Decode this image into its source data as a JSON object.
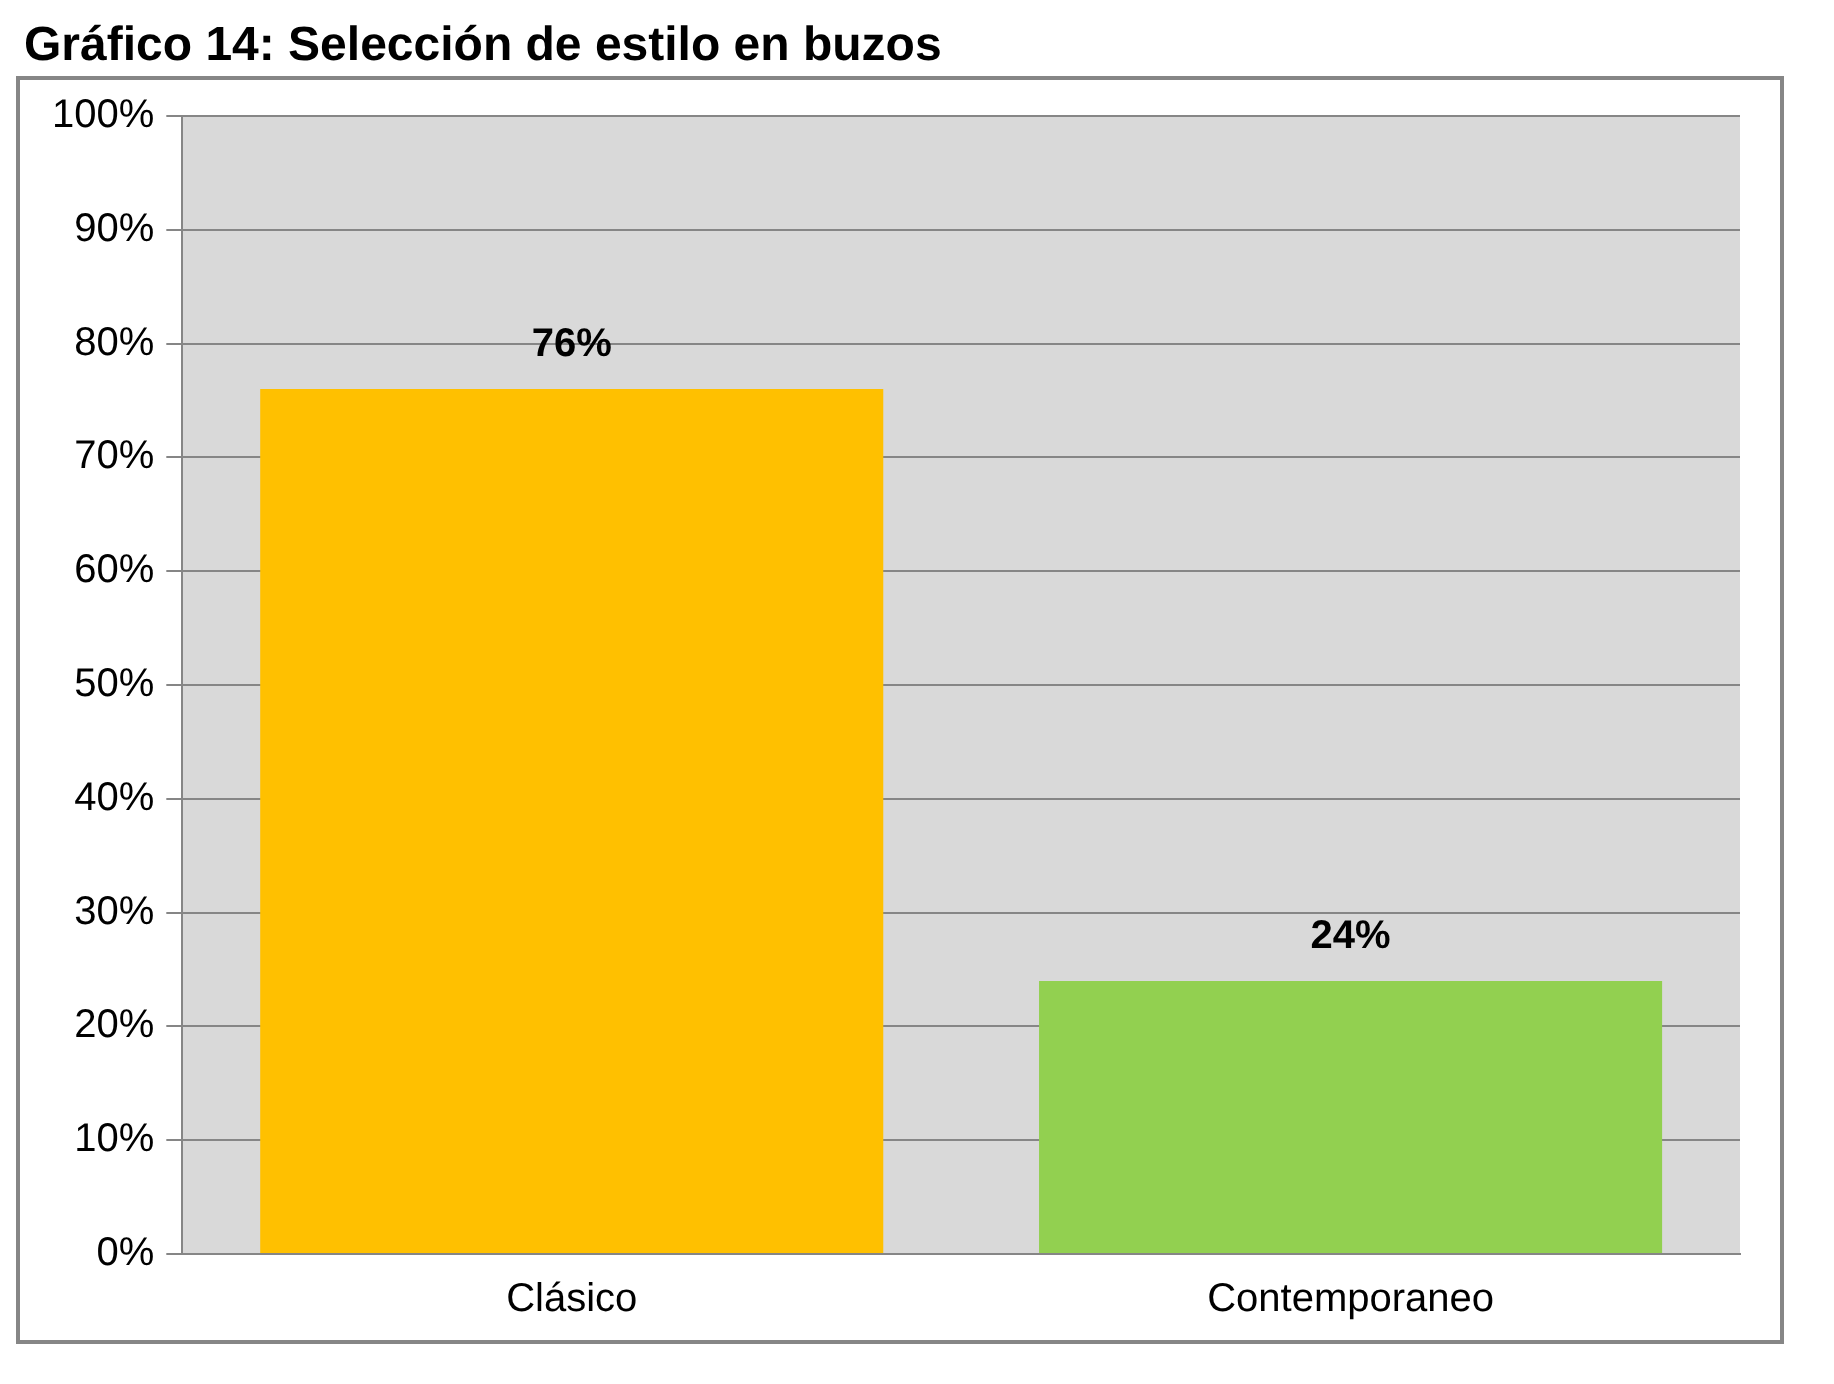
{
  "chart_data": {
    "type": "bar",
    "title": "Gráfico 14: Selección de estilo en buzos",
    "categories": [
      "Clásico",
      "Contemporaneo"
    ],
    "values": [
      76,
      24
    ],
    "colors": [
      "#ffc000",
      "#92d050"
    ],
    "ylim": [
      0,
      100
    ],
    "yticks": [
      {
        "value": 0,
        "label": "0%"
      },
      {
        "value": 10,
        "label": "10%"
      },
      {
        "value": 20,
        "label": "20%"
      },
      {
        "value": 30,
        "label": "30%"
      },
      {
        "value": 40,
        "label": "40%"
      },
      {
        "value": 50,
        "label": "50%"
      },
      {
        "value": 60,
        "label": "60%"
      },
      {
        "value": 70,
        "label": "70%"
      },
      {
        "value": 80,
        "label": "80%"
      },
      {
        "value": 90,
        "label": "90%"
      },
      {
        "value": 100,
        "label": "100%"
      }
    ],
    "grid": "y",
    "data_labels": true,
    "value_labels": [
      "76%",
      "24%"
    ]
  }
}
